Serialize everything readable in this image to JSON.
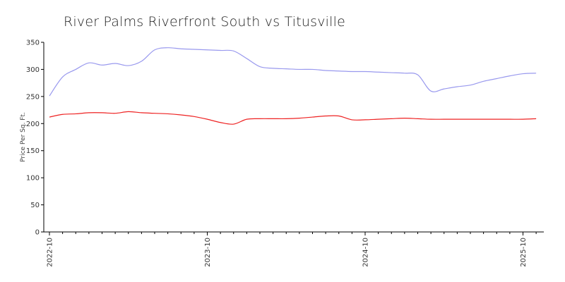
{
  "chart_data": {
    "type": "line",
    "title": "River Palms Riverfront South vs Titusville",
    "xlabel": "",
    "ylabel": "Price Per Sq. Ft.",
    "ylim": [
      0,
      350
    ],
    "yticks": [
      0,
      50,
      100,
      150,
      200,
      250,
      300,
      350
    ],
    "xticks": [
      "2022-10",
      "2023-10",
      "2024-10",
      "2025-10"
    ],
    "xlim": [
      "2022-10",
      "2025-11"
    ],
    "grid": false,
    "legend": "none",
    "series": [
      {
        "color": "#9999ee",
        "points": [
          [
            "2022-10",
            251
          ],
          [
            "2022-11",
            286
          ],
          [
            "2022-12",
            300
          ],
          [
            "2023-01",
            312
          ],
          [
            "2023-02",
            308
          ],
          [
            "2023-03",
            311
          ],
          [
            "2023-04",
            307
          ],
          [
            "2023-05",
            315
          ],
          [
            "2023-06",
            336
          ],
          [
            "2023-07",
            340
          ],
          [
            "2023-08",
            338
          ],
          [
            "2023-09",
            337
          ],
          [
            "2023-10",
            336
          ],
          [
            "2023-11",
            335
          ],
          [
            "2023-12",
            334
          ],
          [
            "2024-01",
            320
          ],
          [
            "2024-02",
            305
          ],
          [
            "2024-03",
            302
          ],
          [
            "2024-04",
            301
          ],
          [
            "2024-05",
            300
          ],
          [
            "2024-06",
            300
          ],
          [
            "2024-07",
            298
          ],
          [
            "2024-08",
            297
          ],
          [
            "2024-09",
            296
          ],
          [
            "2024-10",
            296
          ],
          [
            "2024-11",
            295
          ],
          [
            "2024-12",
            294
          ],
          [
            "2025-01",
            293
          ],
          [
            "2025-02",
            290
          ],
          [
            "2025-03",
            260
          ],
          [
            "2025-04",
            264
          ],
          [
            "2025-05",
            268
          ],
          [
            "2025-06",
            271
          ],
          [
            "2025-07",
            278
          ],
          [
            "2025-08",
            283
          ],
          [
            "2025-09",
            288
          ],
          [
            "2025-10",
            292
          ],
          [
            "2025-11",
            293
          ]
        ]
      },
      {
        "color": "#ee2222",
        "points": [
          [
            "2022-10",
            212
          ],
          [
            "2022-11",
            217
          ],
          [
            "2022-12",
            218
          ],
          [
            "2023-01",
            220
          ],
          [
            "2023-02",
            220
          ],
          [
            "2023-03",
            219
          ],
          [
            "2023-04",
            222
          ],
          [
            "2023-05",
            220
          ],
          [
            "2023-06",
            219
          ],
          [
            "2023-07",
            218
          ],
          [
            "2023-08",
            216
          ],
          [
            "2023-09",
            213
          ],
          [
            "2023-10",
            208
          ],
          [
            "2023-11",
            202
          ],
          [
            "2023-12",
            199
          ],
          [
            "2024-01",
            208
          ],
          [
            "2024-02",
            209
          ],
          [
            "2024-03",
            209
          ],
          [
            "2024-04",
            209
          ],
          [
            "2024-05",
            210
          ],
          [
            "2024-06",
            212
          ],
          [
            "2024-07",
            214
          ],
          [
            "2024-08",
            214
          ],
          [
            "2024-09",
            207
          ],
          [
            "2024-10",
            207
          ],
          [
            "2024-11",
            208
          ],
          [
            "2024-12",
            209
          ],
          [
            "2025-01",
            210
          ],
          [
            "2025-02",
            209
          ],
          [
            "2025-03",
            208
          ],
          [
            "2025-04",
            208
          ],
          [
            "2025-05",
            208
          ],
          [
            "2025-06",
            208
          ],
          [
            "2025-07",
            208
          ],
          [
            "2025-08",
            208
          ],
          [
            "2025-09",
            208
          ],
          [
            "2025-10",
            208
          ],
          [
            "2025-11",
            209
          ]
        ]
      }
    ]
  }
}
